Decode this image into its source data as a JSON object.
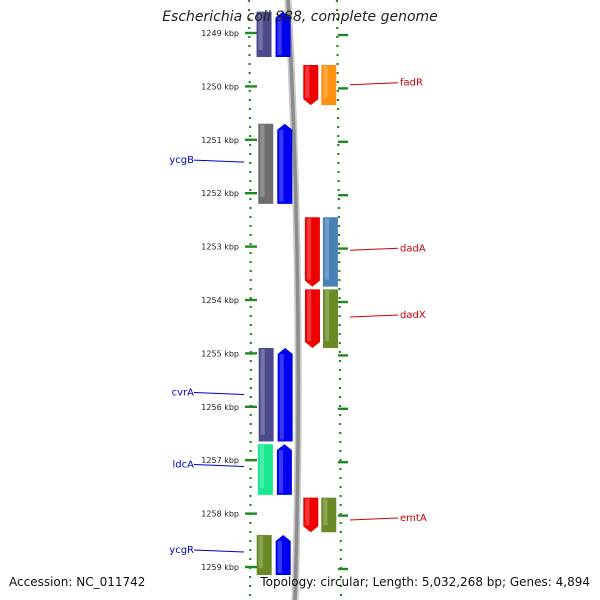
{
  "title": "Escherichia coli S88, complete genome",
  "footer": {
    "accession": "Accession: NC_011742",
    "summary": "Topology: circular; Length: 5,032,268 bp; Genes: 4,894"
  },
  "colors": {
    "ruler_green": "#1e8a1e",
    "backbone_gray": "#8c8c8c",
    "reverse_label": "#0000cc",
    "forward_label": "#cc0000"
  },
  "ruler": {
    "unit": "kbp",
    "ticks": [
      "1249 kbp",
      "1250 kbp",
      "1251 kbp",
      "1252 kbp",
      "1253 kbp",
      "1254 kbp",
      "1255 kbp",
      "1256 kbp",
      "1257 kbp",
      "1258 kbp",
      "1259 kbp"
    ]
  },
  "labels": {
    "reverse": [
      {
        "name": "ycgB",
        "kbp": 1251.4
      },
      {
        "name": "cvrA",
        "kbp": 1255.75
      },
      {
        "name": "ldcA",
        "kbp": 1257.1
      },
      {
        "name": "ycgR",
        "kbp": 1258.7
      }
    ],
    "forward": [
      {
        "name": "fadR",
        "kbp": 1249.95
      },
      {
        "name": "dadA",
        "kbp": 1253.05
      },
      {
        "name": "dadX",
        "kbp": 1254.3
      },
      {
        "name": "emtA",
        "kbp": 1258.1
      }
    ]
  },
  "features": {
    "reverse_cog": [
      {
        "start": 1248.6,
        "end": 1249.45,
        "color": "#4b4b8c"
      },
      {
        "start": 1250.7,
        "end": 1252.2,
        "color": "#6e6e6e"
      },
      {
        "start": 1254.9,
        "end": 1256.65,
        "color": "#4b4b8c"
      },
      {
        "start": 1256.7,
        "end": 1257.65,
        "color": "#18e890"
      },
      {
        "start": 1258.4,
        "end": 1259.15,
        "color": "#6b8a26"
      }
    ],
    "reverse_cds": [
      {
        "start": 1248.6,
        "end": 1249.45,
        "color": "#0000f0"
      },
      {
        "start": 1250.7,
        "end": 1252.2,
        "color": "#0000f0"
      },
      {
        "start": 1254.9,
        "end": 1256.65,
        "color": "#0000f0"
      },
      {
        "start": 1256.7,
        "end": 1257.65,
        "color": "#0000f0"
      },
      {
        "start": 1258.4,
        "end": 1259.15,
        "color": "#0000f0"
      }
    ],
    "forward_cds": [
      {
        "start": 1249.6,
        "end": 1250.35,
        "color": "#ee0000"
      },
      {
        "start": 1252.45,
        "end": 1253.75,
        "color": "#ee0000"
      },
      {
        "start": 1253.8,
        "end": 1254.9,
        "color": "#ee0000"
      },
      {
        "start": 1257.7,
        "end": 1258.35,
        "color": "#ee0000"
      }
    ],
    "forward_cog": [
      {
        "start": 1249.6,
        "end": 1250.35,
        "color": "#ff9010"
      },
      {
        "start": 1252.45,
        "end": 1253.75,
        "color": "#4a80b8"
      },
      {
        "start": 1253.8,
        "end": 1254.9,
        "color": "#6b8a26"
      },
      {
        "start": 1257.7,
        "end": 1258.35,
        "color": "#6b8a26"
      }
    ]
  }
}
